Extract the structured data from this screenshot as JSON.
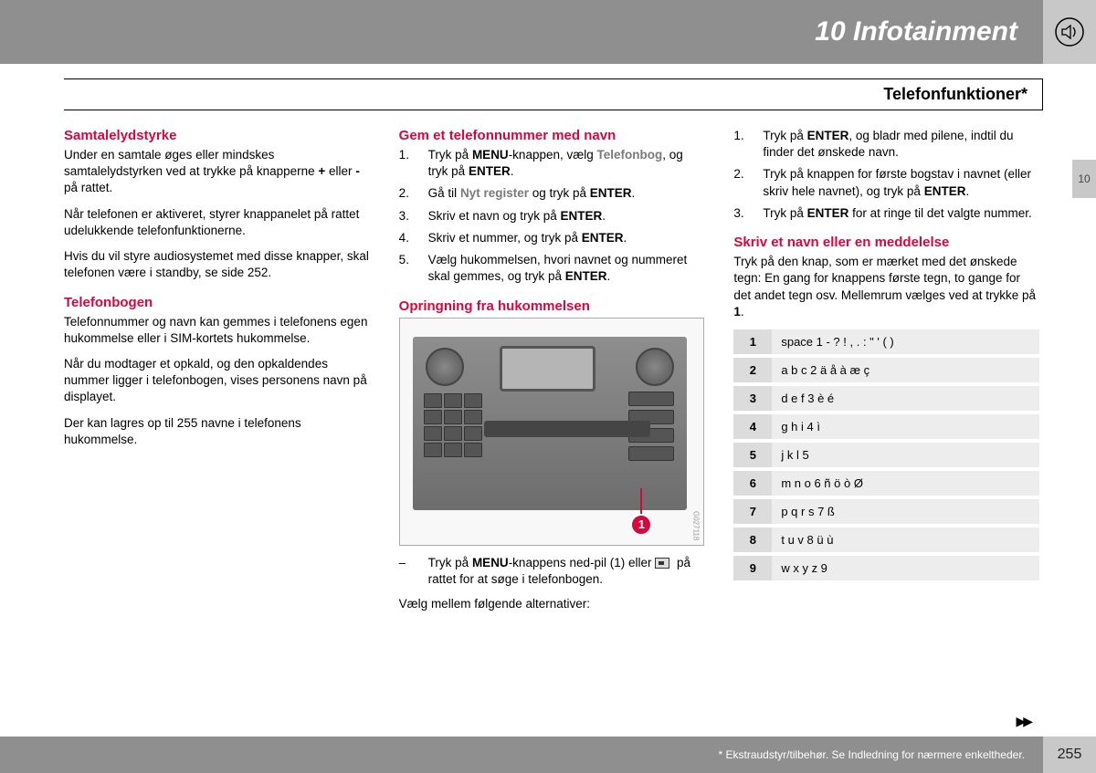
{
  "header": {
    "chapter": "10 Infotainment",
    "section": "Telefonfunktioner*",
    "sideTab": "10"
  },
  "col1": {
    "h1": "Samtalelydstyrke",
    "p1a": "Under en samtale øges eller mindskes samtalelydstyrken ved at trykke på knapperne ",
    "p1b": " eller ",
    "p1c": " på rattet.",
    "plus": "+",
    "minus": "-",
    "p2": "Når telefonen er aktiveret, styrer knappanelet på rattet udelukkende telefonfunktionerne.",
    "p3": "Hvis du vil styre audiosystemet med disse knapper, skal telefonen være i standby, se side 252.",
    "h2": "Telefonbogen",
    "p4": "Telefonnummer og navn kan gemmes i telefonens egen hukommelse eller i SIM-kortets hukommelse.",
    "p5": "Når du modtager et opkald, og den opkaldendes nummer ligger i telefonbogen, vises personens navn på displayet.",
    "p6": "Der kan lagres op til 255 navne i telefonens hukommelse."
  },
  "col2": {
    "h1": "Gem et telefonnummer med navn",
    "li1a": "Tryk på ",
    "li1b": "-knappen, vælg ",
    "li1c": ", og tryk på ",
    "menu": "MENU",
    "telefonbog": "Telefonbog",
    "enter": "ENTER",
    "dot": ".",
    "li2a": "Gå til ",
    "nytreg": "Nyt register",
    "li2b": " og tryk på ",
    "li3": "Skriv et navn og tryk på ",
    "li4": "Skriv et nummer, og tryk på ",
    "li5": "Vælg hukommelsen, hvori navnet og nummeret skal gemmes, og tryk på ",
    "h2": "Opringning fra hukommelsen",
    "callout": "1",
    "imgcode": "G027118",
    "dashA": "Tryk på ",
    "dashB": "-knappens ned-pil (1) eller ",
    "dashC": " på rattet for at søge i telefonbogen.",
    "p7": "Vælg mellem følgende alternativer:"
  },
  "col3": {
    "li1a": "Tryk på ",
    "li1b": ", og bladr med pilene, indtil du finder det ønskede navn.",
    "li2a": "Tryk på knappen for første bogstav i navnet (eller skriv hele navnet), og tryk på ",
    "li3a": "Tryk på ",
    "li3b": " for at ringe til det valgte nummer.",
    "enter": "ENTER",
    "dot": ".",
    "h1": "Skriv et navn eller en meddelelse",
    "p1a": "Tryk på den knap, som er mærket med det ønskede tegn: En gang for knappens første tegn, to gange for det andet tegn osv. Mellemrum vælges ved at trykke på ",
    "one": "1",
    "table": [
      {
        "k": "1",
        "v": "space 1 - ? ! , . : \" ' ( )"
      },
      {
        "k": "2",
        "v": "a b c 2 ä å à æ ç"
      },
      {
        "k": "3",
        "v": "d e f 3 è é"
      },
      {
        "k": "4",
        "v": "g h i 4 ì"
      },
      {
        "k": "5",
        "v": "j k l 5"
      },
      {
        "k": "6",
        "v": "m n o 6 ñ ö ò Ø"
      },
      {
        "k": "7",
        "v": "p q r s 7 ß"
      },
      {
        "k": "8",
        "v": "t u v 8 ü ù"
      },
      {
        "k": "9",
        "v": "w x y z 9"
      }
    ]
  },
  "footer": {
    "note": "* Ekstraudstyr/tilbehør. Se Indledning for nærmere enkeltheder.",
    "page": "255"
  },
  "colors": {
    "accent": "#d6083b",
    "headerGray": "#8f8f8f",
    "lightGray": "#c8c8c8"
  }
}
